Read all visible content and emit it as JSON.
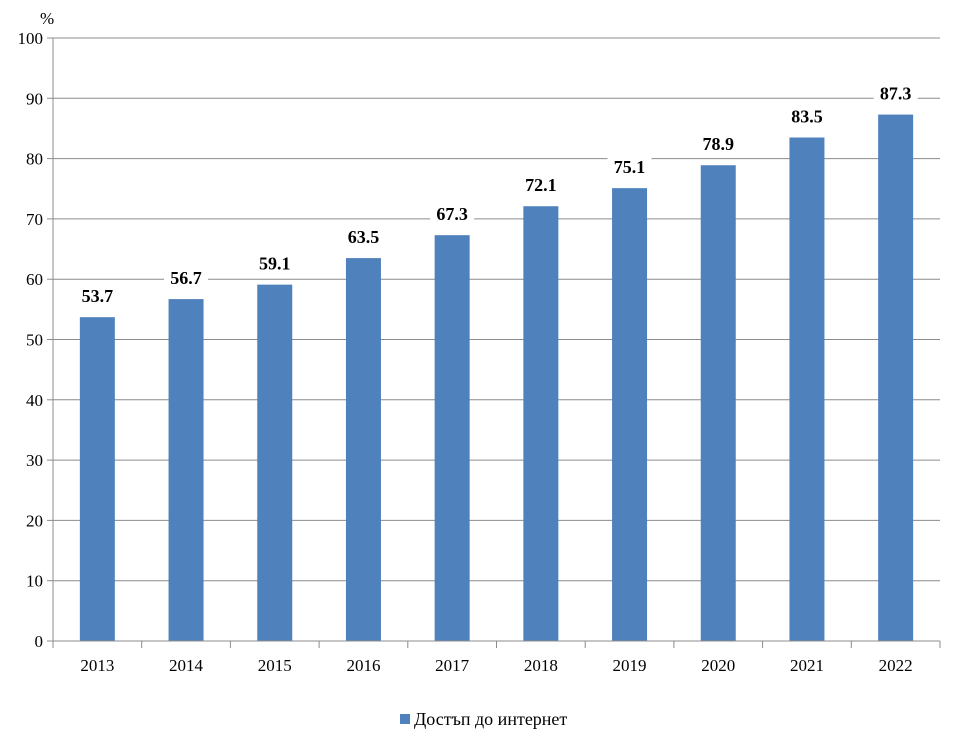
{
  "chart_data": {
    "type": "bar",
    "y_unit": "%",
    "categories": [
      "2013",
      "2014",
      "2015",
      "2016",
      "2017",
      "2018",
      "2019",
      "2020",
      "2021",
      "2022"
    ],
    "series": [
      {
        "name": "Достъп до интернет",
        "values": [
          53.7,
          56.7,
          59.1,
          63.5,
          67.3,
          72.1,
          75.1,
          78.9,
          83.5,
          87.3
        ],
        "color": "#4f81bd"
      }
    ],
    "ylim": [
      0,
      100
    ],
    "yticks": [
      "0",
      "10",
      "20",
      "30",
      "40",
      "50",
      "60",
      "70",
      "80",
      "90",
      "100"
    ],
    "grid": true,
    "legend": "bottom-center",
    "data_labels": true
  }
}
